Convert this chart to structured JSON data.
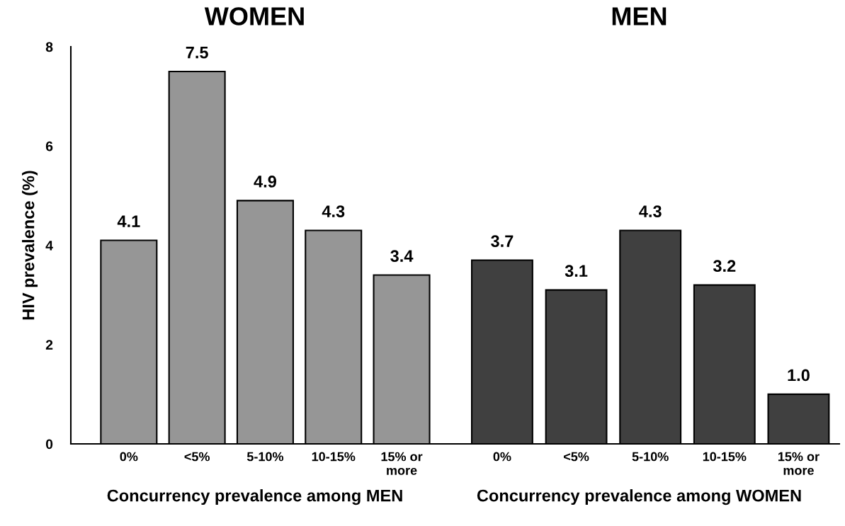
{
  "chart_data": [
    {
      "type": "bar",
      "title": "WOMEN",
      "xlabel": "Concurrency prevalence among MEN",
      "ylabel": "HIV prevalence (%)",
      "categories": [
        "0%",
        "<5%",
        "5-10%",
        "10-15%",
        "15% or\nmore"
      ],
      "values": [
        4.1,
        7.5,
        4.9,
        4.3,
        3.4
      ],
      "value_labels": [
        "4.1",
        "7.5",
        "4.9",
        "4.3",
        "3.4"
      ],
      "color": "#969696",
      "ylim": [
        0,
        8
      ],
      "yticks": [
        0,
        2,
        4,
        6,
        8
      ],
      "grid": false,
      "legend": false
    },
    {
      "type": "bar",
      "title": "MEN",
      "xlabel": "Concurrency prevalence among WOMEN",
      "categories": [
        "0%",
        "<5%",
        "5-10%",
        "10-15%",
        "15% or\nmore"
      ],
      "values": [
        3.7,
        3.1,
        4.3,
        3.2,
        1.0
      ],
      "value_labels": [
        "3.7",
        "3.1",
        "4.3",
        "3.2",
        "1.0"
      ],
      "color": "#404040",
      "ylim": [
        0,
        8
      ],
      "tick_labels": "x",
      "grid": false,
      "legend": false
    }
  ]
}
